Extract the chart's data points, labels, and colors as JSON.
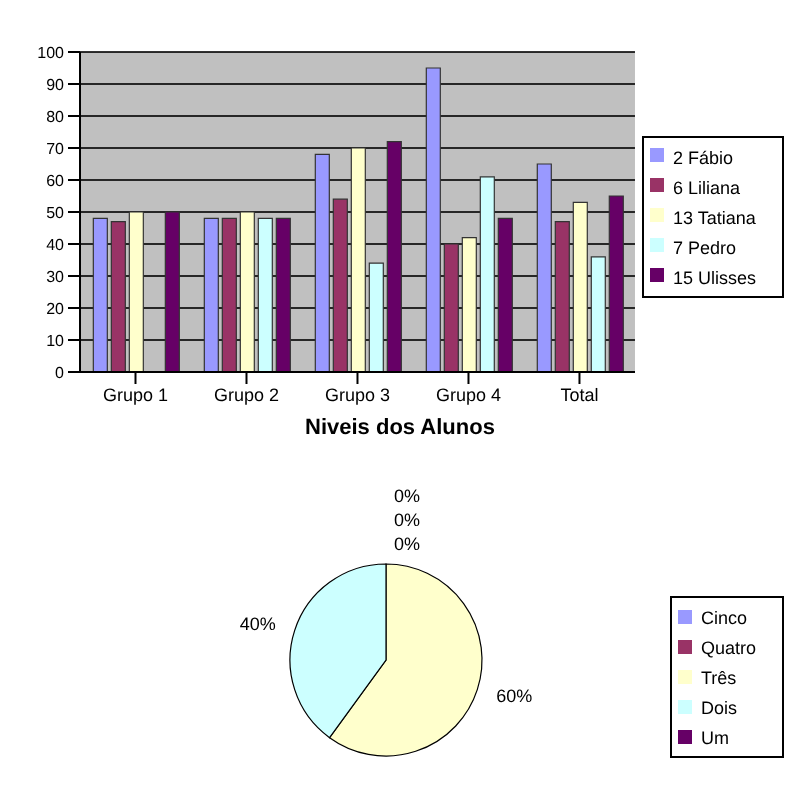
{
  "chart_data": [
    {
      "type": "bar",
      "categories": [
        "Grupo 1",
        "Grupo 2",
        "Grupo 3",
        "Grupo 4",
        "Total"
      ],
      "series": [
        {
          "name": "2 Fábio",
          "color": "#9999ff",
          "values": [
            48,
            48,
            68,
            95,
            65
          ]
        },
        {
          "name": "6 Liliana",
          "color": "#993366",
          "values": [
            47,
            48,
            54,
            40,
            47
          ]
        },
        {
          "name": "13 Tatiana",
          "color": "#ffffcc",
          "values": [
            50,
            50,
            70,
            42,
            53
          ]
        },
        {
          "name": "7 Pedro",
          "color": "#ccffff",
          "values": [
            null,
            48,
            34,
            61,
            36
          ]
        },
        {
          "name": "15 Ulisses",
          "color": "#660066",
          "values": [
            50,
            48,
            72,
            48,
            55
          ]
        }
      ],
      "ylim": [
        0,
        100
      ],
      "yticks": [
        0,
        10,
        20,
        30,
        40,
        50,
        60,
        70,
        80,
        90,
        100
      ],
      "grid": "y",
      "legend": "right"
    },
    {
      "type": "pie",
      "title": "Niveis dos Alunos",
      "categories": [
        "Cinco",
        "Quatro",
        "Três",
        "Dois",
        "Um"
      ],
      "values": [
        0,
        0,
        60,
        40,
        0
      ],
      "colors": [
        "#9999ff",
        "#993366",
        "#ffffcc",
        "#ccffff",
        "#660066"
      ],
      "value_labels": [
        "0%",
        "0%",
        "60%",
        "40%",
        "0%"
      ],
      "legend": "right"
    }
  ]
}
